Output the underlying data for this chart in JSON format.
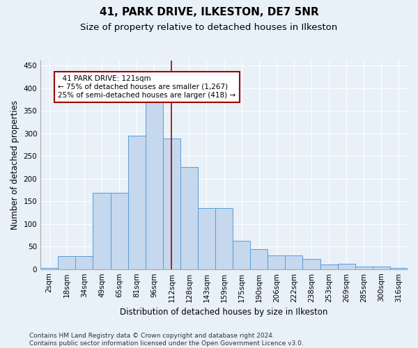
{
  "title_line1": "41, PARK DRIVE, ILKESTON, DE7 5NR",
  "title_line2": "Size of property relative to detached houses in Ilkeston",
  "xlabel": "Distribution of detached houses by size in Ilkeston",
  "ylabel": "Number of detached properties",
  "footnote": "Contains HM Land Registry data © Crown copyright and database right 2024.\nContains public sector information licensed under the Open Government Licence v3.0.",
  "bin_labels": [
    "2sqm",
    "18sqm",
    "34sqm",
    "49sqm",
    "65sqm",
    "81sqm",
    "96sqm",
    "112sqm",
    "128sqm",
    "143sqm",
    "159sqm",
    "175sqm",
    "190sqm",
    "206sqm",
    "222sqm",
    "238sqm",
    "253sqm",
    "269sqm",
    "285sqm",
    "300sqm",
    "316sqm"
  ],
  "bar_values": [
    2,
    28,
    28,
    168,
    168,
    295,
    370,
    289,
    226,
    135,
    135,
    62,
    44,
    31,
    31,
    23,
    11,
    12,
    5,
    5,
    2
  ],
  "bar_color": "#c5d8ed",
  "bar_edge_color": "#5b9bd5",
  "vline_x": 7.5,
  "vline_color": "#a00000",
  "annotation_text": "  41 PARK DRIVE: 121sqm\n← 75% of detached houses are smaller (1,267)\n25% of semi-detached houses are larger (418) →",
  "annotation_box_color": "#ffffff",
  "annotation_box_edge_color": "#a00000",
  "ylim": [
    0,
    460
  ],
  "yticks": [
    0,
    50,
    100,
    150,
    200,
    250,
    300,
    350,
    400,
    450
  ],
  "bg_color": "#e8f0f8",
  "grid_color": "#ffffff",
  "title1_fontsize": 11,
  "title2_fontsize": 9.5,
  "axis_label_fontsize": 8.5,
  "tick_fontsize": 7.5,
  "footnote_fontsize": 6.5
}
